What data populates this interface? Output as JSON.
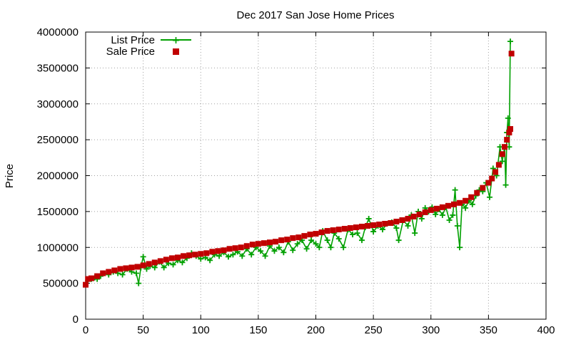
{
  "chart_data": {
    "type": "line",
    "title": "Dec 2017 San Jose Home Prices",
    "xlabel": "",
    "ylabel": "Price",
    "xlim": [
      0,
      400
    ],
    "ylim": [
      0,
      4000000
    ],
    "x_ticks": [
      "0",
      "50",
      "100",
      "150",
      "200",
      "250",
      "300",
      "350",
      "400"
    ],
    "y_ticks": [
      "0",
      "500000",
      "1000000",
      "1500000",
      "2000000",
      "2500000",
      "3000000",
      "3500000",
      "4000000"
    ],
    "grid": true,
    "legend_position": "top-left",
    "colors": {
      "list_price": "#00a000",
      "sale_price": "#c00000"
    },
    "series": [
      {
        "name": "List Price",
        "style": "line-plus",
        "points": [
          [
            0,
            480000
          ],
          [
            2,
            540000
          ],
          [
            5,
            560000
          ],
          [
            8,
            580000
          ],
          [
            10,
            560000
          ],
          [
            13,
            600000
          ],
          [
            16,
            640000
          ],
          [
            20,
            620000
          ],
          [
            24,
            660000
          ],
          [
            28,
            640000
          ],
          [
            32,
            620000
          ],
          [
            36,
            700000
          ],
          [
            40,
            660000
          ],
          [
            44,
            640000
          ],
          [
            46,
            500000
          ],
          [
            48,
            720000
          ],
          [
            50,
            870000
          ],
          [
            53,
            700000
          ],
          [
            56,
            740000
          ],
          [
            60,
            720000
          ],
          [
            64,
            800000
          ],
          [
            68,
            720000
          ],
          [
            72,
            780000
          ],
          [
            76,
            760000
          ],
          [
            80,
            820000
          ],
          [
            84,
            790000
          ],
          [
            88,
            850000
          ],
          [
            92,
            920000
          ],
          [
            96,
            880000
          ],
          [
            100,
            840000
          ],
          [
            104,
            860000
          ],
          [
            108,
            820000
          ],
          [
            112,
            900000
          ],
          [
            116,
            880000
          ],
          [
            120,
            930000
          ],
          [
            124,
            870000
          ],
          [
            128,
            900000
          ],
          [
            132,
            940000
          ],
          [
            136,
            880000
          ],
          [
            140,
            980000
          ],
          [
            144,
            900000
          ],
          [
            148,
            1000000
          ],
          [
            152,
            950000
          ],
          [
            156,
            880000
          ],
          [
            160,
            1020000
          ],
          [
            164,
            950000
          ],
          [
            168,
            1000000
          ],
          [
            172,
            930000
          ],
          [
            176,
            1080000
          ],
          [
            180,
            960000
          ],
          [
            184,
            1050000
          ],
          [
            188,
            1100000
          ],
          [
            192,
            980000
          ],
          [
            196,
            1100000
          ],
          [
            200,
            1050000
          ],
          [
            203,
            1000000
          ],
          [
            206,
            1230000
          ],
          [
            210,
            1100000
          ],
          [
            213,
            1000000
          ],
          [
            216,
            1200000
          ],
          [
            220,
            1120000
          ],
          [
            224,
            1000000
          ],
          [
            228,
            1250000
          ],
          [
            232,
            1180000
          ],
          [
            236,
            1200000
          ],
          [
            240,
            1100000
          ],
          [
            243,
            1280000
          ],
          [
            246,
            1400000
          ],
          [
            250,
            1220000
          ],
          [
            254,
            1300000
          ],
          [
            258,
            1250000
          ],
          [
            262,
            1330000
          ],
          [
            266,
            1350000
          ],
          [
            270,
            1270000
          ],
          [
            272,
            1100000
          ],
          [
            276,
            1380000
          ],
          [
            280,
            1300000
          ],
          [
            283,
            1450000
          ],
          [
            286,
            1200000
          ],
          [
            289,
            1500000
          ],
          [
            292,
            1400000
          ],
          [
            295,
            1550000
          ],
          [
            298,
            1500000
          ],
          [
            301,
            1560000
          ],
          [
            304,
            1460000
          ],
          [
            307,
            1530000
          ],
          [
            310,
            1450000
          ],
          [
            313,
            1560000
          ],
          [
            316,
            1380000
          ],
          [
            319,
            1450000
          ],
          [
            321,
            1800000
          ],
          [
            323,
            1300000
          ],
          [
            325,
            1000000
          ],
          [
            327,
            1600000
          ],
          [
            330,
            1550000
          ],
          [
            333,
            1650000
          ],
          [
            336,
            1600000
          ],
          [
            339,
            1720000
          ],
          [
            342,
            1800000
          ],
          [
            345,
            1780000
          ],
          [
            348,
            1900000
          ],
          [
            351,
            1700000
          ],
          [
            354,
            2100000
          ],
          [
            357,
            2000000
          ],
          [
            360,
            2400000
          ],
          [
            362,
            2200000
          ],
          [
            364,
            2400000
          ],
          [
            365,
            1870000
          ],
          [
            366,
            2600000
          ],
          [
            367,
            2800000
          ],
          [
            368,
            2400000
          ],
          [
            369,
            3870000
          ]
        ]
      },
      {
        "name": "Sale Price",
        "style": "points-square",
        "points": [
          [
            0,
            480000
          ],
          [
            2,
            560000
          ],
          [
            5,
            570000
          ],
          [
            10,
            600000
          ],
          [
            15,
            640000
          ],
          [
            20,
            660000
          ],
          [
            25,
            680000
          ],
          [
            30,
            700000
          ],
          [
            35,
            710000
          ],
          [
            40,
            720000
          ],
          [
            45,
            730000
          ],
          [
            50,
            750000
          ],
          [
            55,
            770000
          ],
          [
            60,
            790000
          ],
          [
            65,
            810000
          ],
          [
            70,
            830000
          ],
          [
            75,
            850000
          ],
          [
            80,
            860000
          ],
          [
            85,
            880000
          ],
          [
            90,
            890000
          ],
          [
            95,
            900000
          ],
          [
            100,
            910000
          ],
          [
            105,
            920000
          ],
          [
            110,
            940000
          ],
          [
            115,
            950000
          ],
          [
            120,
            960000
          ],
          [
            125,
            980000
          ],
          [
            130,
            990000
          ],
          [
            135,
            1000000
          ],
          [
            140,
            1020000
          ],
          [
            145,
            1040000
          ],
          [
            150,
            1050000
          ],
          [
            155,
            1060000
          ],
          [
            160,
            1070000
          ],
          [
            165,
            1080000
          ],
          [
            170,
            1100000
          ],
          [
            175,
            1110000
          ],
          [
            180,
            1130000
          ],
          [
            185,
            1140000
          ],
          [
            190,
            1160000
          ],
          [
            195,
            1180000
          ],
          [
            200,
            1190000
          ],
          [
            205,
            1210000
          ],
          [
            210,
            1230000
          ],
          [
            215,
            1240000
          ],
          [
            220,
            1250000
          ],
          [
            225,
            1260000
          ],
          [
            230,
            1270000
          ],
          [
            235,
            1280000
          ],
          [
            240,
            1290000
          ],
          [
            245,
            1300000
          ],
          [
            250,
            1310000
          ],
          [
            255,
            1320000
          ],
          [
            260,
            1330000
          ],
          [
            265,
            1340000
          ],
          [
            270,
            1360000
          ],
          [
            275,
            1380000
          ],
          [
            280,
            1400000
          ],
          [
            285,
            1430000
          ],
          [
            290,
            1460000
          ],
          [
            295,
            1490000
          ],
          [
            300,
            1520000
          ],
          [
            305,
            1540000
          ],
          [
            310,
            1560000
          ],
          [
            315,
            1580000
          ],
          [
            320,
            1600000
          ],
          [
            325,
            1620000
          ],
          [
            330,
            1650000
          ],
          [
            335,
            1700000
          ],
          [
            340,
            1760000
          ],
          [
            345,
            1830000
          ],
          [
            350,
            1900000
          ],
          [
            353,
            1960000
          ],
          [
            356,
            2050000
          ],
          [
            359,
            2150000
          ],
          [
            362,
            2300000
          ],
          [
            364,
            2400000
          ],
          [
            366,
            2500000
          ],
          [
            368,
            2600000
          ],
          [
            369,
            2650000
          ],
          [
            370,
            3700000
          ]
        ]
      }
    ]
  }
}
